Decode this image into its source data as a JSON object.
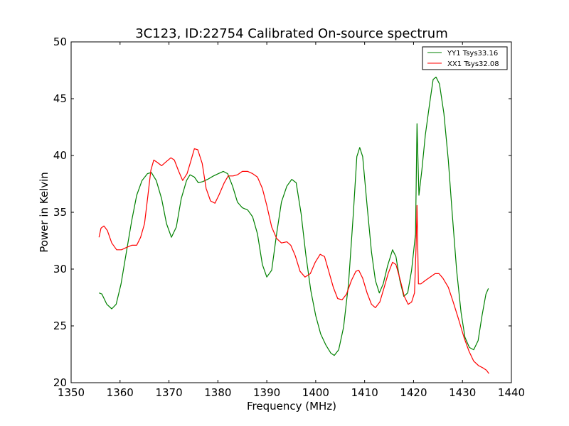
{
  "chart_data": {
    "type": "line",
    "title": "3C123, ID:22754 Calibrated On-source spectrum",
    "xlabel": "Frequency (MHz)",
    "ylabel": "Power in Kelvin",
    "xlim": [
      1350,
      1440
    ],
    "ylim": [
      20,
      50
    ],
    "xticks": [
      1350,
      1360,
      1370,
      1380,
      1390,
      1400,
      1410,
      1420,
      1430,
      1440
    ],
    "yticks": [
      20,
      25,
      30,
      35,
      40,
      45,
      50
    ],
    "grid": false,
    "legend_position": "top-right",
    "series": [
      {
        "name": "YY1 Tsys33.16",
        "color": "#008000",
        "x": [
          1355.7,
          1356.3,
          1357.3,
          1358.3,
          1359.2,
          1360.2,
          1361.3,
          1362.4,
          1363.4,
          1364.5,
          1365.6,
          1366.4,
          1367.4,
          1368.5,
          1369.5,
          1370.5,
          1371.5,
          1372.5,
          1373.6,
          1374.3,
          1375.2,
          1376.0,
          1376.9,
          1377.9,
          1379.1,
          1380.1,
          1381.1,
          1382.0,
          1383.0,
          1384.0,
          1385.0,
          1386.1,
          1387.1,
          1388.1,
          1389.1,
          1390.0,
          1391.0,
          1392.0,
          1393.0,
          1394.1,
          1395.1,
          1396.0,
          1397.0,
          1398.0,
          1399.0,
          1400.0,
          1401.0,
          1402.1,
          1403.1,
          1403.8,
          1404.7,
          1405.7,
          1406.7,
          1407.7,
          1408.4,
          1409.0,
          1409.6,
          1410.5,
          1411.4,
          1412.2,
          1413.0,
          1413.8,
          1414.7,
          1415.7,
          1416.4,
          1417.2,
          1418.0,
          1418.8,
          1419.6,
          1420.4,
          1420.7,
          1421.1,
          1421.7,
          1422.4,
          1423.3,
          1424.0,
          1424.6,
          1425.3,
          1426.2,
          1427.1,
          1427.9,
          1428.8,
          1429.7,
          1430.5,
          1431.4,
          1432.3,
          1433.2,
          1434.0,
          1434.8,
          1435.3
        ],
        "y": [
          27.9,
          27.8,
          26.9,
          26.5,
          26.9,
          28.7,
          31.5,
          34.3,
          36.5,
          37.8,
          38.4,
          38.5,
          37.8,
          36.2,
          34.0,
          32.8,
          33.7,
          36.2,
          37.8,
          38.3,
          38.1,
          37.6,
          37.7,
          37.9,
          38.2,
          38.4,
          38.6,
          38.4,
          37.3,
          35.9,
          35.4,
          35.2,
          34.6,
          33.1,
          30.4,
          29.3,
          29.9,
          33.1,
          35.9,
          37.3,
          37.9,
          37.6,
          34.9,
          31.2,
          28.1,
          25.9,
          24.3,
          23.3,
          22.6,
          22.4,
          22.9,
          24.9,
          28.7,
          34.9,
          39.9,
          40.7,
          39.9,
          35.6,
          31.5,
          29.0,
          27.9,
          28.7,
          30.3,
          31.7,
          31.1,
          29.0,
          27.6,
          27.9,
          29.9,
          33.1,
          42.8,
          36.5,
          38.7,
          41.8,
          44.6,
          46.7,
          46.9,
          46.3,
          43.7,
          39.6,
          34.9,
          29.9,
          26.2,
          24.0,
          23.1,
          22.9,
          23.7,
          25.9,
          27.8,
          28.3
        ]
      },
      {
        "name": "XX1 Tsys32.08",
        "color": "#ff0000",
        "x": [
          1355.7,
          1356.1,
          1356.7,
          1357.4,
          1358.3,
          1359.3,
          1360.3,
          1361.3,
          1362.4,
          1363.4,
          1364.2,
          1365.0,
          1365.7,
          1366.3,
          1366.9,
          1367.6,
          1368.5,
          1369.3,
          1370.4,
          1371.1,
          1372.0,
          1372.8,
          1373.7,
          1374.4,
          1375.2,
          1375.9,
          1376.8,
          1377.6,
          1378.5,
          1379.4,
          1380.2,
          1381.3,
          1382.1,
          1383.1,
          1384.0,
          1385.0,
          1386.1,
          1387.1,
          1388.1,
          1389.1,
          1390.0,
          1391.0,
          1392.0,
          1393.0,
          1394.1,
          1394.9,
          1395.8,
          1396.8,
          1397.8,
          1398.9,
          1399.9,
          1400.9,
          1401.8,
          1402.6,
          1403.6,
          1404.5,
          1405.4,
          1406.3,
          1407.3,
          1408.2,
          1408.8,
          1409.6,
          1410.5,
          1411.4,
          1412.2,
          1413.1,
          1414.0,
          1414.8,
          1415.7,
          1416.4,
          1417.3,
          1418.1,
          1418.9,
          1419.6,
          1420.2,
          1420.5,
          1420.7,
          1421.0,
          1421.5,
          1422.4,
          1423.4,
          1424.4,
          1425.2,
          1426.0,
          1427.1,
          1428.1,
          1429.2,
          1430.3,
          1431.3,
          1432.3,
          1433.3,
          1434.2,
          1434.9,
          1435.4
        ],
        "y": [
          32.8,
          33.6,
          33.8,
          33.4,
          32.3,
          31.7,
          31.7,
          31.9,
          32.1,
          32.1,
          32.8,
          34.0,
          36.5,
          38.7,
          39.6,
          39.4,
          39.1,
          39.4,
          39.8,
          39.6,
          38.6,
          37.8,
          38.4,
          39.4,
          40.6,
          40.5,
          39.3,
          37.1,
          36.0,
          35.8,
          36.5,
          37.6,
          38.2,
          38.2,
          38.3,
          38.6,
          38.6,
          38.4,
          38.1,
          37.1,
          35.6,
          33.7,
          32.7,
          32.3,
          32.4,
          32.1,
          31.2,
          29.8,
          29.3,
          29.6,
          30.6,
          31.3,
          31.1,
          29.9,
          28.4,
          27.4,
          27.3,
          27.8,
          29.0,
          29.8,
          29.9,
          29.2,
          27.9,
          26.9,
          26.6,
          27.1,
          28.4,
          29.6,
          30.6,
          30.4,
          29.0,
          27.6,
          26.9,
          27.1,
          27.9,
          31.8,
          35.6,
          28.7,
          28.7,
          29.0,
          29.3,
          29.6,
          29.6,
          29.2,
          28.4,
          27.1,
          25.6,
          24.0,
          22.8,
          21.9,
          21.5,
          21.3,
          21.1,
          20.8
        ]
      }
    ]
  }
}
